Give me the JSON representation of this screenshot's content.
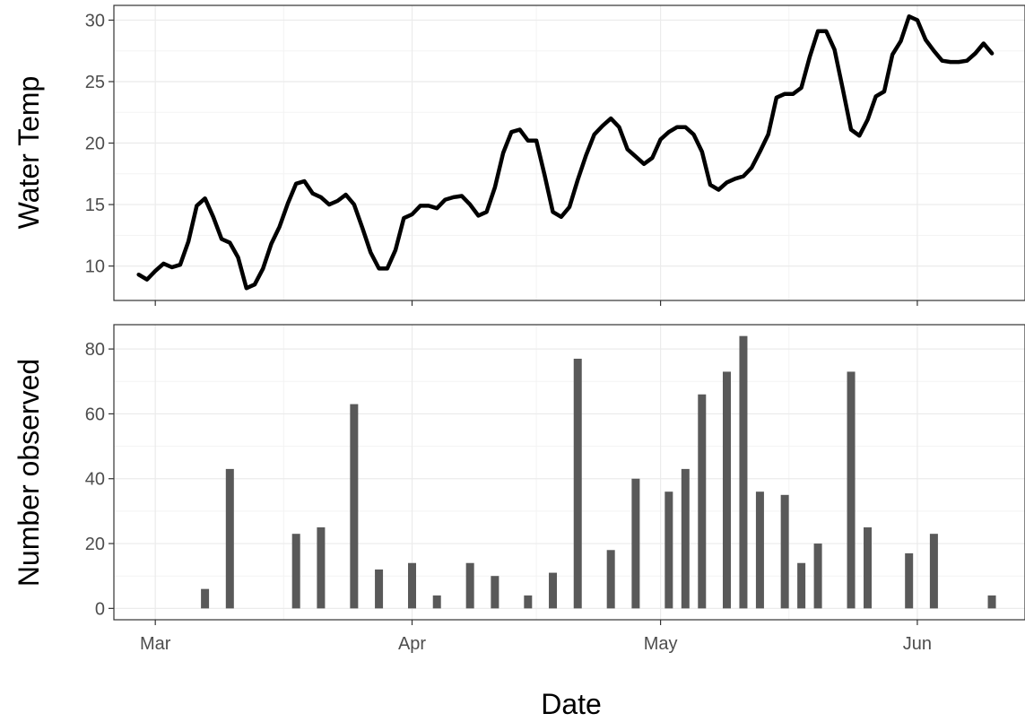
{
  "chart_data": [
    {
      "type": "line",
      "ylabel": "Water Temp",
      "ylim": [
        7.2,
        31.2
      ],
      "yticks": [
        10,
        15,
        20,
        25,
        30
      ],
      "x_range": [
        "2024-02-25",
        "2024-06-14"
      ],
      "xticks": [
        {
          "date": "2024-03-01",
          "label": "Mar"
        },
        {
          "date": "2024-04-01",
          "label": "Apr"
        },
        {
          "date": "2024-05-01",
          "label": "May"
        },
        {
          "date": "2024-06-01",
          "label": "Jun"
        }
      ],
      "grid": true,
      "line_color": "#000000",
      "series": [
        {
          "x": [
            "2024-02-28",
            "2024-02-29",
            "2024-03-01",
            "2024-03-02",
            "2024-03-03",
            "2024-03-04",
            "2024-03-05",
            "2024-03-06",
            "2024-03-07",
            "2024-03-08",
            "2024-03-09",
            "2024-03-10",
            "2024-03-11",
            "2024-03-12",
            "2024-03-13",
            "2024-03-14",
            "2024-03-15",
            "2024-03-16",
            "2024-03-17",
            "2024-03-18",
            "2024-03-19",
            "2024-03-20",
            "2024-03-21",
            "2024-03-22",
            "2024-03-23",
            "2024-03-24",
            "2024-03-25",
            "2024-03-26",
            "2024-03-27",
            "2024-03-28",
            "2024-03-29",
            "2024-03-30",
            "2024-03-31",
            "2024-04-01",
            "2024-04-02",
            "2024-04-03",
            "2024-04-04",
            "2024-04-05",
            "2024-04-06",
            "2024-04-07",
            "2024-04-08",
            "2024-04-09",
            "2024-04-10",
            "2024-04-11",
            "2024-04-12",
            "2024-04-13",
            "2024-04-14",
            "2024-04-15",
            "2024-04-16",
            "2024-04-17",
            "2024-04-18",
            "2024-04-19",
            "2024-04-20",
            "2024-04-21",
            "2024-04-22",
            "2024-04-23",
            "2024-04-24",
            "2024-04-25",
            "2024-04-26",
            "2024-04-27",
            "2024-04-28",
            "2024-04-29",
            "2024-04-30",
            "2024-05-01",
            "2024-05-02",
            "2024-05-03",
            "2024-05-04",
            "2024-05-05",
            "2024-05-06",
            "2024-05-07",
            "2024-05-08",
            "2024-05-09",
            "2024-05-10",
            "2024-05-11",
            "2024-05-12",
            "2024-05-13",
            "2024-05-14",
            "2024-05-15",
            "2024-05-16",
            "2024-05-17",
            "2024-05-18",
            "2024-05-19",
            "2024-05-20",
            "2024-05-21",
            "2024-05-22",
            "2024-05-23",
            "2024-05-24",
            "2024-05-25",
            "2024-05-26",
            "2024-05-27",
            "2024-05-28",
            "2024-05-29",
            "2024-05-30",
            "2024-05-31",
            "2024-06-01",
            "2024-06-02",
            "2024-06-03",
            "2024-06-04",
            "2024-06-05",
            "2024-06-06",
            "2024-06-07",
            "2024-06-08",
            "2024-06-09",
            "2024-06-10"
          ],
          "y": [
            9.3,
            8.9,
            9.6,
            10.2,
            9.9,
            10.1,
            12.0,
            14.9,
            15.5,
            14.0,
            12.2,
            11.9,
            10.7,
            8.2,
            8.5,
            9.8,
            11.8,
            13.2,
            15.1,
            16.7,
            16.9,
            15.9,
            15.6,
            15.0,
            15.3,
            15.8,
            15.0,
            13.1,
            11.1,
            9.8,
            9.8,
            11.3,
            13.9,
            14.2,
            14.9,
            14.9,
            14.7,
            15.4,
            15.6,
            15.7,
            15.0,
            14.1,
            14.4,
            16.4,
            19.2,
            20.9,
            21.1,
            20.2,
            20.2,
            17.4,
            14.4,
            14.0,
            14.8,
            17.0,
            19.0,
            20.7,
            21.4,
            22.0,
            21.3,
            19.5,
            18.9,
            18.3,
            18.8,
            20.3,
            20.9,
            21.3,
            21.3,
            20.7,
            19.3,
            16.6,
            16.2,
            16.8,
            17.1,
            17.3,
            18.0,
            19.3,
            20.7,
            23.7,
            24.0,
            24.0,
            24.5,
            27.0,
            29.1,
            29.1,
            27.6,
            24.4,
            21.1,
            20.6,
            21.9,
            23.8,
            24.2,
            27.2,
            28.3,
            30.3,
            30.0,
            28.4,
            27.5,
            26.7,
            26.6,
            26.6,
            26.7,
            27.3,
            28.1,
            27.3
          ]
        }
      ]
    },
    {
      "type": "bar",
      "xlabel": "Date",
      "ylabel": "Number observed",
      "ylim": [
        -3.5,
        87.5
      ],
      "yticks": [
        0,
        20,
        40,
        60,
        80
      ],
      "x_range": [
        "2024-02-25",
        "2024-06-14"
      ],
      "xticks": [
        {
          "date": "2024-03-01",
          "label": "Mar"
        },
        {
          "date": "2024-04-01",
          "label": "Apr"
        },
        {
          "date": "2024-05-01",
          "label": "May"
        },
        {
          "date": "2024-06-01",
          "label": "Jun"
        }
      ],
      "grid": true,
      "bar_color": "#595959",
      "x": [
        "2024-03-07",
        "2024-03-10",
        "2024-03-18",
        "2024-03-21",
        "2024-03-25",
        "2024-03-28",
        "2024-04-01",
        "2024-04-04",
        "2024-04-08",
        "2024-04-11",
        "2024-04-15",
        "2024-04-18",
        "2024-04-21",
        "2024-04-25",
        "2024-04-28",
        "2024-05-02",
        "2024-05-04",
        "2024-05-06",
        "2024-05-09",
        "2024-05-11",
        "2024-05-13",
        "2024-05-16",
        "2024-05-18",
        "2024-05-20",
        "2024-05-24",
        "2024-05-26",
        "2024-05-31",
        "2024-06-03",
        "2024-06-10"
      ],
      "values": [
        6,
        43,
        23,
        25,
        63,
        12,
        14,
        4,
        14,
        10,
        4,
        11,
        77,
        18,
        40,
        36,
        43,
        66,
        73,
        84,
        36,
        35,
        14,
        20,
        73,
        25,
        17,
        23,
        4
      ]
    }
  ]
}
